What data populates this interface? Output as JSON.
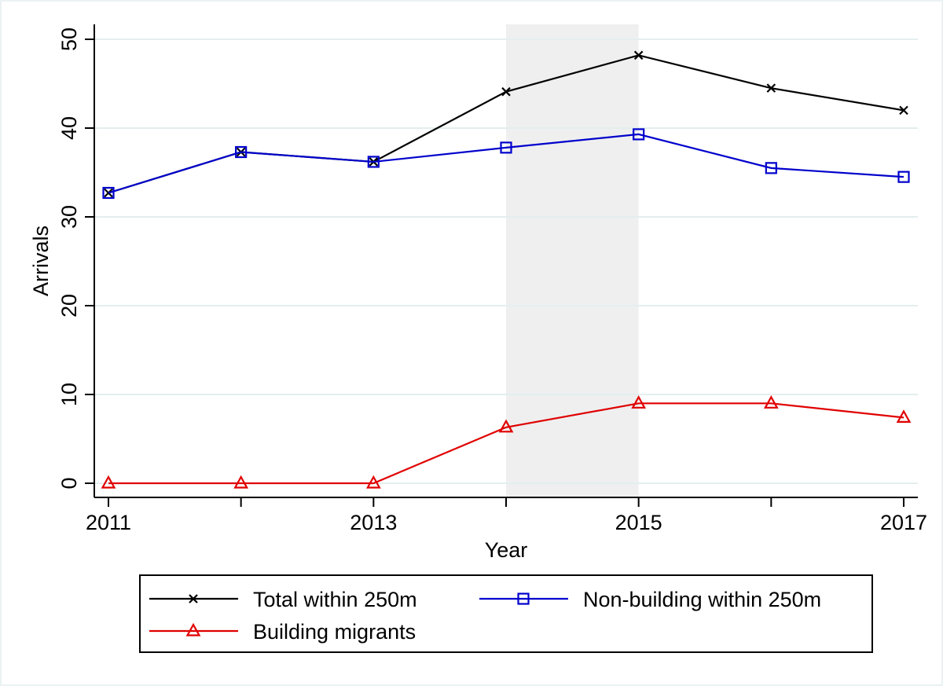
{
  "chart_data": {
    "type": "line",
    "title": "",
    "xlabel": "Year",
    "ylabel": "Arrivals",
    "x": [
      2011,
      2012,
      2013,
      2014,
      2015,
      2016,
      2017
    ],
    "x_ticks_labeled": [
      "2011",
      "2013",
      "2015",
      "2017"
    ],
    "xlim": [
      2011,
      2017
    ],
    "ylim": [
      0,
      50
    ],
    "y_ticks": [
      "0",
      "10",
      "20",
      "30",
      "40",
      "50"
    ],
    "grid": true,
    "shaded_period": [
      2014,
      2015
    ],
    "series": [
      {
        "name": "Total within 250m",
        "color": "#000000",
        "marker": "x",
        "values": [
          32.7,
          37.3,
          36.2,
          44.1,
          48.2,
          44.5,
          42.0
        ]
      },
      {
        "name": "Non-building within 250m",
        "color": "#0000cc",
        "marker": "square",
        "values": [
          32.7,
          37.3,
          36.2,
          37.8,
          39.3,
          35.5,
          34.5
        ]
      },
      {
        "name": "Building migrants",
        "color": "#e00000",
        "marker": "triangle",
        "values": [
          0,
          0,
          0,
          6.3,
          9.0,
          9.0,
          7.4
        ]
      }
    ],
    "legend_position": "bottom"
  }
}
